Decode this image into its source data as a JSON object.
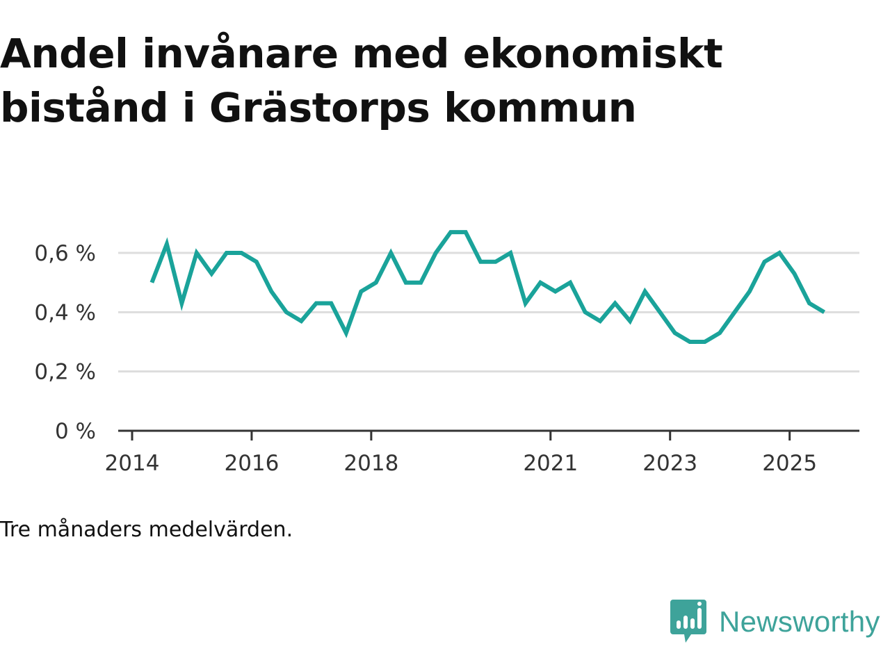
{
  "title": "Andel invånare med ekonomiskt bistånd i Grästorps kommun",
  "caption": "Tre månaders medelvärden.",
  "brand": {
    "name": "Newsworthy",
    "icon": "newsworthy-logo-icon",
    "color": "#3ea39a"
  },
  "chart_data": {
    "type": "line",
    "title": "Andel invånare med ekonomiskt bistånd i Grästorps kommun",
    "xlabel": "",
    "ylabel": "",
    "ylim": [
      0,
      0.7
    ],
    "xlim": [
      2013.9,
      2026.2
    ],
    "grid": true,
    "line_color": "#1aa39a",
    "y_ticks": [
      {
        "value": 0,
        "label": "0 %"
      },
      {
        "value": 0.2,
        "label": "0,2 %"
      },
      {
        "value": 0.4,
        "label": "0,4 %"
      },
      {
        "value": 0.6,
        "label": "0,6 %"
      }
    ],
    "x_ticks": [
      {
        "value": 2014,
        "label": "2014"
      },
      {
        "value": 2016,
        "label": "2016"
      },
      {
        "value": 2018,
        "label": "2018"
      },
      {
        "value": 2021,
        "label": "2021"
      },
      {
        "value": 2023,
        "label": "2023"
      },
      {
        "value": 2025,
        "label": "2025"
      }
    ],
    "series": [
      {
        "name": "Andel invånare med ekonomiskt bistånd",
        "x": [
          2014.33,
          2014.58,
          2014.83,
          2015.08,
          2015.33,
          2015.58,
          2015.83,
          2016.08,
          2016.33,
          2016.58,
          2016.83,
          2017.08,
          2017.33,
          2017.58,
          2017.83,
          2018.08,
          2018.33,
          2018.58,
          2018.83,
          2019.08,
          2019.33,
          2019.58,
          2019.83,
          2020.08,
          2020.33,
          2020.58,
          2020.83,
          2021.08,
          2021.33,
          2021.58,
          2021.83,
          2022.08,
          2022.33,
          2022.58,
          2022.83,
          2023.08,
          2023.33,
          2023.58,
          2023.83,
          2024.08,
          2024.33,
          2024.58,
          2024.83,
          2025.08,
          2025.33,
          2025.58
        ],
        "values": [
          0.5,
          0.63,
          0.43,
          0.6,
          0.53,
          0.6,
          0.6,
          0.57,
          0.47,
          0.4,
          0.37,
          0.43,
          0.43,
          0.33,
          0.47,
          0.5,
          0.6,
          0.5,
          0.5,
          0.6,
          0.67,
          0.67,
          0.57,
          0.57,
          0.6,
          0.43,
          0.5,
          0.47,
          0.5,
          0.4,
          0.37,
          0.43,
          0.37,
          0.47,
          0.4,
          0.33,
          0.3,
          0.3,
          0.33,
          0.4,
          0.47,
          0.57,
          0.6,
          0.53,
          0.43,
          0.4
        ]
      }
    ]
  }
}
